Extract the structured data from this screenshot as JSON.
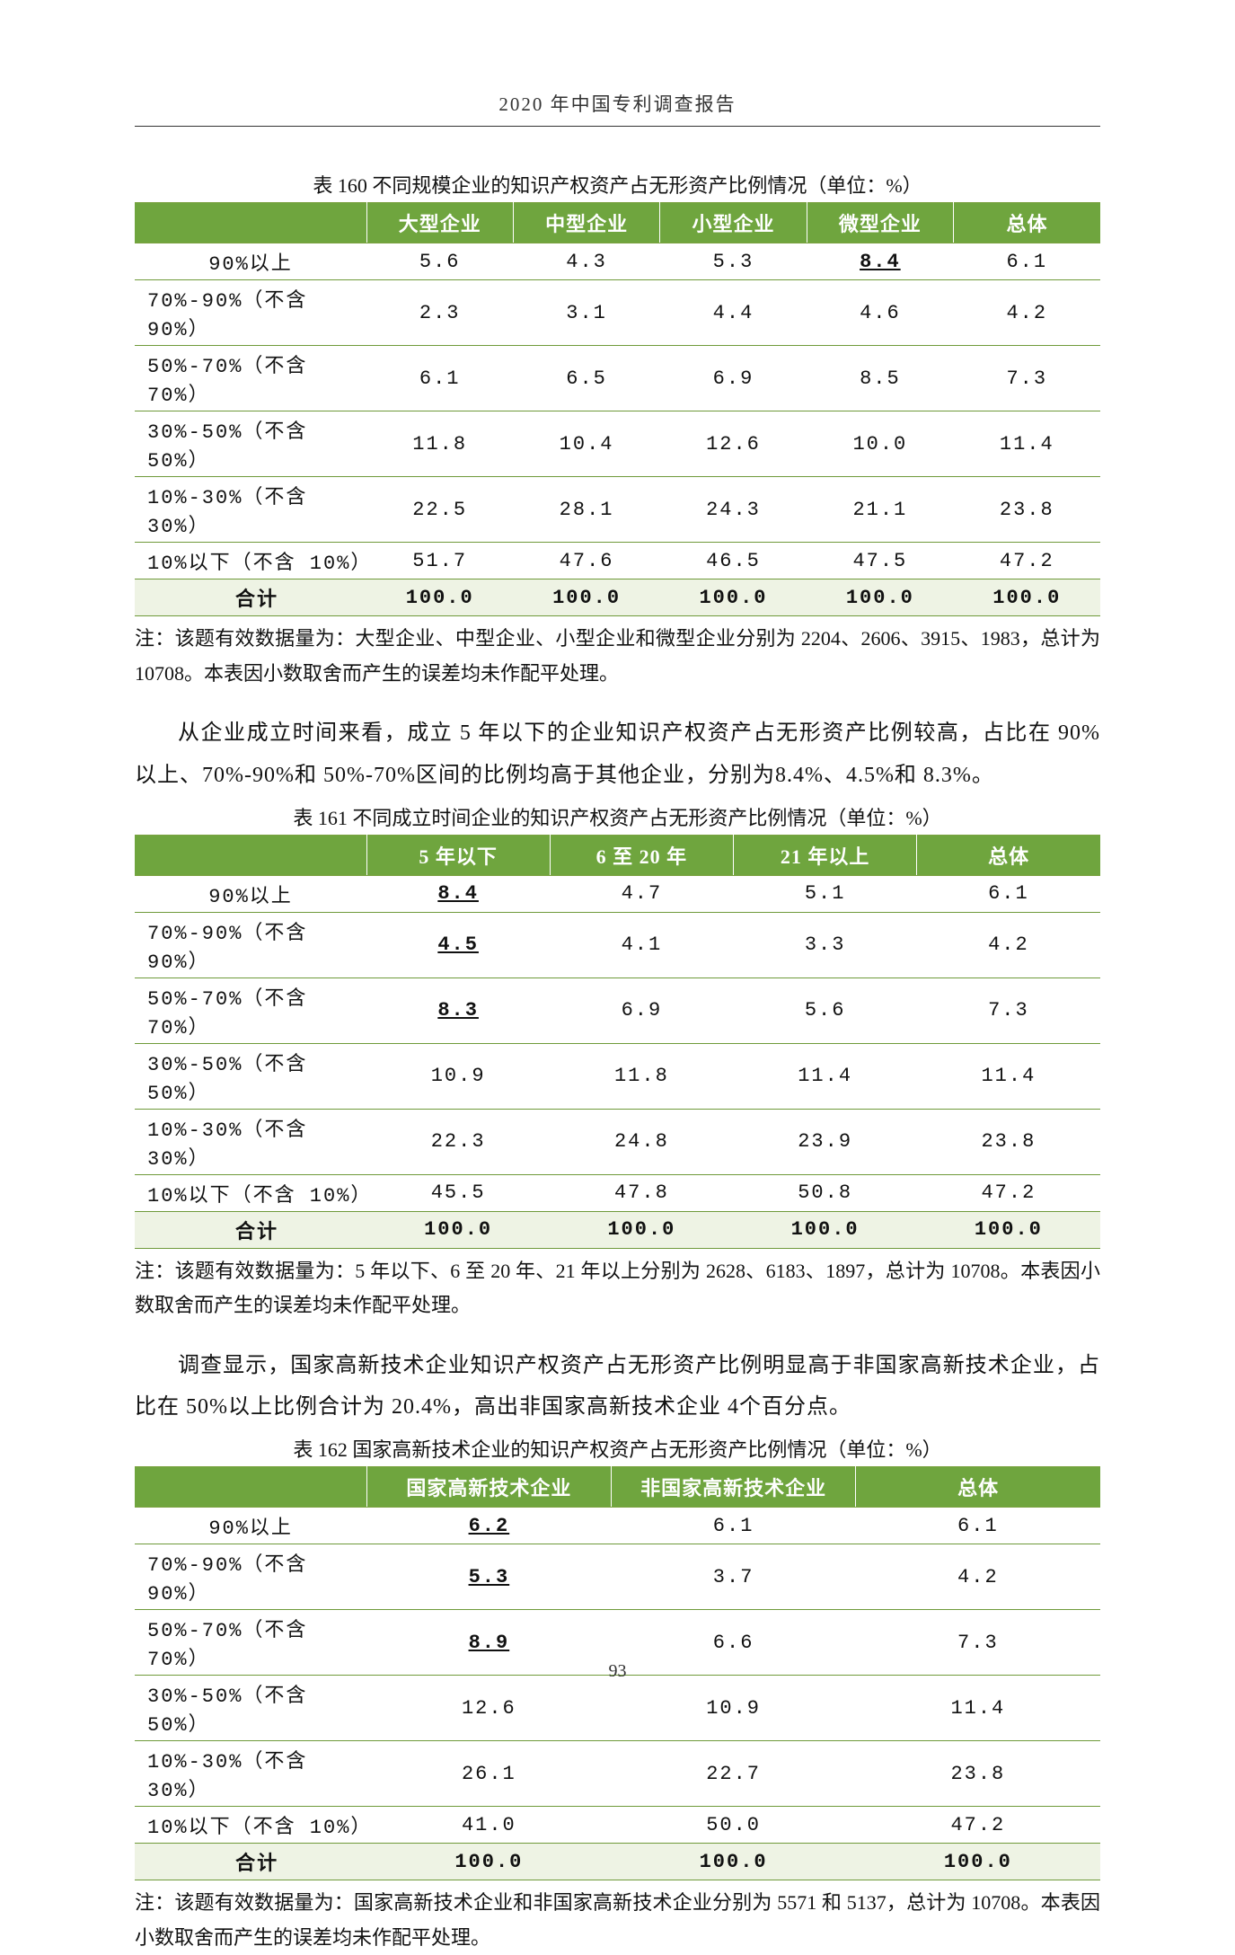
{
  "header": {
    "title": "2020 年中国专利调查报告"
  },
  "colors": {
    "table_header_bg": "#6fa53e",
    "table_total_bg": "#eef3e4",
    "border": "#6f9a3a"
  },
  "table160": {
    "caption": "表 160  不同规模企业的知识产权资产占无形资产比例情况（单位：%）",
    "columns": [
      "",
      "大型企业",
      "中型企业",
      "小型企业",
      "微型企业",
      "总体"
    ],
    "col_widths": [
      "24%",
      "15.2%",
      "15.2%",
      "15.2%",
      "15.2%",
      "15.2%"
    ],
    "rows": [
      {
        "label": "90%以上",
        "values": [
          "5.6",
          "4.3",
          "5.3",
          "8.4",
          "6.1"
        ],
        "underline": [
          false,
          false,
          false,
          true,
          false
        ],
        "label_align": "center"
      },
      {
        "label": "70%-90%（不含 90%）",
        "values": [
          "2.3",
          "3.1",
          "4.4",
          "4.6",
          "4.2"
        ],
        "underline": [
          false,
          false,
          false,
          false,
          false
        ]
      },
      {
        "label": "50%-70%（不含 70%）",
        "values": [
          "6.1",
          "6.5",
          "6.9",
          "8.5",
          "7.3"
        ],
        "underline": [
          false,
          false,
          false,
          false,
          false
        ]
      },
      {
        "label": "30%-50%（不含 50%）",
        "values": [
          "11.8",
          "10.4",
          "12.6",
          "10.0",
          "11.4"
        ],
        "underline": [
          false,
          false,
          false,
          false,
          false
        ]
      },
      {
        "label": "10%-30%（不含 30%）",
        "values": [
          "22.5",
          "28.1",
          "24.3",
          "21.1",
          "23.8"
        ],
        "underline": [
          false,
          false,
          false,
          false,
          false
        ]
      },
      {
        "label": "10%以下（不含 10%）",
        "values": [
          "51.7",
          "47.6",
          "46.5",
          "47.5",
          "47.2"
        ],
        "underline": [
          false,
          false,
          false,
          false,
          false
        ]
      }
    ],
    "total": {
      "label": "合计",
      "values": [
        "100.0",
        "100.0",
        "100.0",
        "100.0",
        "100.0"
      ]
    },
    "note": "注：该题有效数据量为：大型企业、中型企业、小型企业和微型企业分别为 2204、2606、3915、1983，总计为 10708。本表因小数取舍而产生的误差均未作配平处理。"
  },
  "para1": "从企业成立时间来看，成立 5 年以下的企业知识产权资产占无形资产比例较高，占比在 90%以上、70%-90%和 50%-70%区间的比例均高于其他企业，分别为8.4%、4.5%和 8.3%。",
  "table161": {
    "caption": "表 161  不同成立时间企业的知识产权资产占无形资产比例情况（单位：%）",
    "columns": [
      "",
      "5 年以下",
      "6 至 20 年",
      "21 年以上",
      "总体"
    ],
    "col_widths": [
      "24%",
      "19%",
      "19%",
      "19%",
      "19%"
    ],
    "rows": [
      {
        "label": "90%以上",
        "values": [
          "8.4",
          "4.7",
          "5.1",
          "6.1"
        ],
        "underline": [
          true,
          false,
          false,
          false
        ],
        "label_align": "center"
      },
      {
        "label": "70%-90%（不含 90%）",
        "values": [
          "4.5",
          "4.1",
          "3.3",
          "4.2"
        ],
        "underline": [
          true,
          false,
          false,
          false
        ]
      },
      {
        "label": "50%-70%（不含 70%）",
        "values": [
          "8.3",
          "6.9",
          "5.6",
          "7.3"
        ],
        "underline": [
          true,
          false,
          false,
          false
        ]
      },
      {
        "label": "30%-50%（不含 50%）",
        "values": [
          "10.9",
          "11.8",
          "11.4",
          "11.4"
        ],
        "underline": [
          false,
          false,
          false,
          false
        ]
      },
      {
        "label": "10%-30%（不含 30%）",
        "values": [
          "22.3",
          "24.8",
          "23.9",
          "23.8"
        ],
        "underline": [
          false,
          false,
          false,
          false
        ]
      },
      {
        "label": "10%以下（不含 10%）",
        "values": [
          "45.5",
          "47.8",
          "50.8",
          "47.2"
        ],
        "underline": [
          false,
          false,
          false,
          false
        ]
      }
    ],
    "total": {
      "label": "合计",
      "values": [
        "100.0",
        "100.0",
        "100.0",
        "100.0"
      ]
    },
    "note": "注：该题有效数据量为：5 年以下、6 至 20 年、21 年以上分别为 2628、6183、1897，总计为 10708。本表因小数取舍而产生的误差均未作配平处理。"
  },
  "para2": "调查显示，国家高新技术企业知识产权资产占无形资产比例明显高于非国家高新技术企业，占比在 50%以上比例合计为 20.4%，高出非国家高新技术企业 4个百分点。",
  "table162": {
    "caption": "表 162  国家高新技术企业的知识产权资产占无形资产比例情况（单位：%）",
    "columns": [
      "",
      "国家高新技术企业",
      "非国家高新技术企业",
      "总体"
    ],
    "col_widths": [
      "24%",
      "25.3%",
      "25.3%",
      "25.3%"
    ],
    "rows": [
      {
        "label": "90%以上",
        "values": [
          "6.2",
          "6.1",
          "6.1"
        ],
        "underline": [
          true,
          false,
          false
        ],
        "label_align": "center"
      },
      {
        "label": "70%-90%（不含 90%）",
        "values": [
          "5.3",
          "3.7",
          "4.2"
        ],
        "underline": [
          true,
          false,
          false
        ]
      },
      {
        "label": "50%-70%（不含 70%）",
        "values": [
          "8.9",
          "6.6",
          "7.3"
        ],
        "underline": [
          true,
          false,
          false
        ]
      },
      {
        "label": "30%-50%（不含 50%）",
        "values": [
          "12.6",
          "10.9",
          "11.4"
        ],
        "underline": [
          false,
          false,
          false
        ]
      },
      {
        "label": "10%-30%（不含 30%）",
        "values": [
          "26.1",
          "22.7",
          "23.8"
        ],
        "underline": [
          false,
          false,
          false
        ]
      },
      {
        "label": "10%以下（不含 10%）",
        "values": [
          "41.0",
          "50.0",
          "47.2"
        ],
        "underline": [
          false,
          false,
          false
        ]
      }
    ],
    "total": {
      "label": "合计",
      "values": [
        "100.0",
        "100.0",
        "100.0"
      ]
    },
    "note": "注：该题有效数据量为：国家高新技术企业和非国家高新技术企业分别为 5571 和 5137，总计为 10708。本表因小数取舍而产生的误差均未作配平处理。"
  },
  "page_number": "93"
}
